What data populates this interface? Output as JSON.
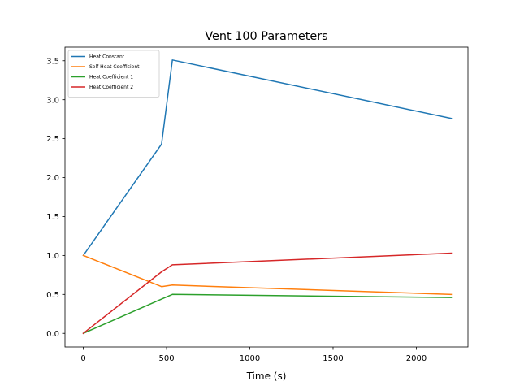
{
  "chart_data": {
    "type": "line",
    "title": "Vent 100 Parameters",
    "xlabel": "Time (s)",
    "ylabel": "",
    "xlim": [
      -110,
      2310
    ],
    "ylim": [
      -0.175,
      3.675
    ],
    "xticks": [
      0,
      500,
      1000,
      1500,
      2000
    ],
    "xtick_labels": [
      "0",
      "500",
      "1000",
      "1500",
      "2000"
    ],
    "yticks": [
      0.0,
      0.5,
      1.0,
      1.5,
      2.0,
      2.5,
      3.0,
      3.5
    ],
    "ytick_labels": [
      "0.0",
      "0.5",
      "1.0",
      "1.5",
      "2.0",
      "2.5",
      "3.0",
      "3.5"
    ],
    "grid": false,
    "legend_position": "top-left",
    "series": [
      {
        "name": "Heat Constant",
        "color": "#1f77b4",
        "x": [
          0,
          470,
          535,
          2210
        ],
        "y": [
          1.0,
          2.43,
          3.51,
          2.76
        ]
      },
      {
        "name": "Self Heat Coefficient",
        "color": "#ff7f0e",
        "x": [
          0,
          470,
          535,
          2210
        ],
        "y": [
          1.0,
          0.6,
          0.62,
          0.5
        ]
      },
      {
        "name": "Heat Coefficient 1",
        "color": "#2ca02c",
        "x": [
          0,
          470,
          535,
          2210
        ],
        "y": [
          0.0,
          0.44,
          0.5,
          0.46
        ]
      },
      {
        "name": "Heat Coefficient 2",
        "color": "#d62728",
        "x": [
          0,
          470,
          535,
          2210
        ],
        "y": [
          0.0,
          0.79,
          0.88,
          1.03
        ]
      }
    ]
  }
}
